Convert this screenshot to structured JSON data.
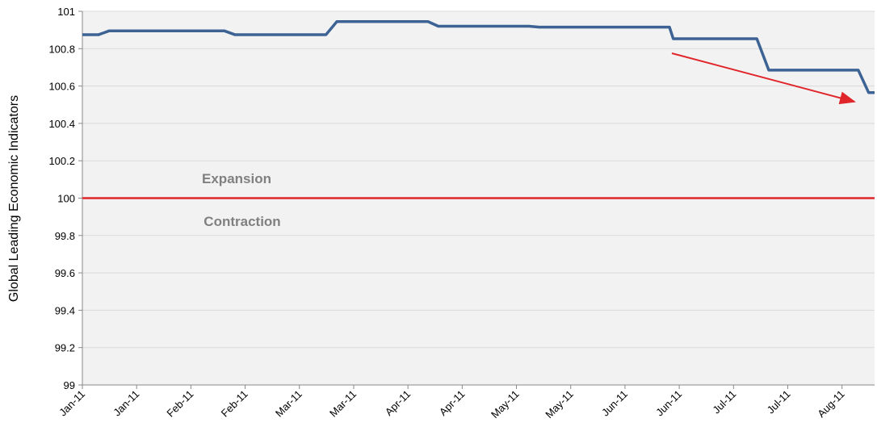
{
  "chart_data": {
    "type": "line",
    "y_label": "Global Leading Economic Indicators",
    "annotations": [
      "Expansion",
      "Contraction"
    ],
    "threshold": 100,
    "threshold_color": "#e0262b",
    "xlim": [
      0,
      14.6
    ],
    "xticks": [
      {
        "value": 0,
        "label": "Jan-11"
      },
      {
        "value": 1,
        "label": "Jan-11"
      },
      {
        "value": 2,
        "label": "Feb-11"
      },
      {
        "value": 3,
        "label": "Feb-11"
      },
      {
        "value": 4,
        "label": "Mar-11"
      },
      {
        "value": 5,
        "label": "Mar-11"
      },
      {
        "value": 6,
        "label": "Apr-11"
      },
      {
        "value": 7,
        "label": "Apr-11"
      },
      {
        "value": 8,
        "label": "May-11"
      },
      {
        "value": 9,
        "label": "May-11"
      },
      {
        "value": 10,
        "label": "Jun-11"
      },
      {
        "value": 11,
        "label": "Jun-11"
      },
      {
        "value": 12,
        "label": "Jul-11"
      },
      {
        "value": 13,
        "label": "Jul-11"
      },
      {
        "value": 14,
        "label": "Aug-11"
      }
    ],
    "ylim": [
      99,
      101
    ],
    "yticks": [
      99,
      99.2,
      99.4,
      99.6,
      99.8,
      100,
      100.2,
      100.4,
      100.6,
      100.8,
      101
    ],
    "grid": true,
    "x": [
      0,
      0.3,
      0.49,
      2.62,
      2.81,
      4.49,
      4.69,
      6.37,
      6.56,
      8.23,
      8.42,
      10.82,
      10.89,
      12.43,
      12.65,
      14.3,
      14.49,
      14.6
    ],
    "series": [
      {
        "name": "Global Leading Economic Indicators",
        "color": "#3d6395",
        "values": [
          100.875,
          100.875,
          100.895,
          100.895,
          100.875,
          100.875,
          100.945,
          100.945,
          100.92,
          100.92,
          100.915,
          100.915,
          100.853,
          100.853,
          100.685,
          100.685,
          100.565,
          100.565
        ]
      }
    ]
  }
}
